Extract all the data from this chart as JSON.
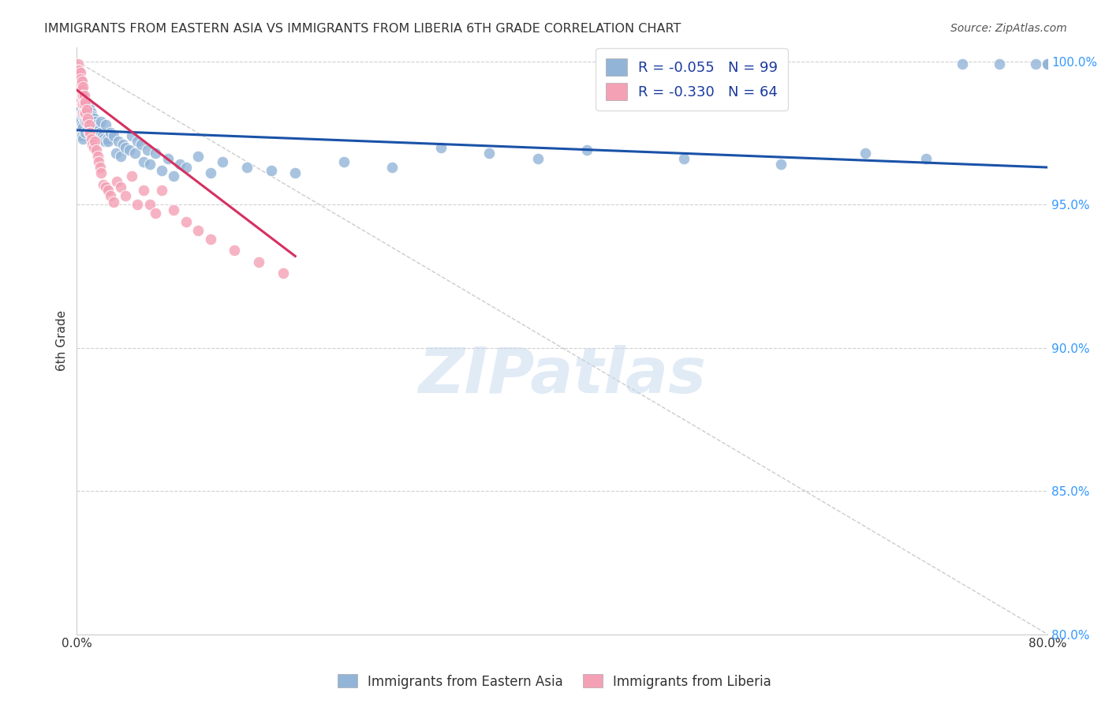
{
  "title": "IMMIGRANTS FROM EASTERN ASIA VS IMMIGRANTS FROM LIBERIA 6TH GRADE CORRELATION CHART",
  "source": "Source: ZipAtlas.com",
  "ylabel": "6th Grade",
  "x_min": 0.0,
  "x_max": 0.8,
  "y_min": 0.8,
  "y_max": 1.005,
  "y_ticks": [
    0.8,
    0.85,
    0.9,
    0.95,
    1.0
  ],
  "y_tick_labels": [
    "80.0%",
    "85.0%",
    "90.0%",
    "95.0%",
    "100.0%"
  ],
  "r_blue": -0.055,
  "n_blue": 99,
  "r_pink": -0.33,
  "n_pink": 64,
  "legend_label_blue": "Immigrants from Eastern Asia",
  "legend_label_pink": "Immigrants from Liberia",
  "blue_color": "#92b4d7",
  "pink_color": "#f4a0b5",
  "trend_blue_color": "#1a52a8",
  "trend_pink_color": "#d63060",
  "blue_trend_x0": 0.0,
  "blue_trend_y0": 0.976,
  "blue_trend_x1": 0.8,
  "blue_trend_y1": 0.963,
  "pink_trend_x0": 0.0,
  "pink_trend_y0": 0.99,
  "pink_trend_x1": 0.18,
  "pink_trend_y1": 0.932,
  "ref_line_x0": 0.0,
  "ref_line_y0": 1.0,
  "ref_line_x1": 0.8,
  "ref_line_y1": 0.8,
  "blue_scatter_x": [
    0.001,
    0.001,
    0.001,
    0.002,
    0.002,
    0.002,
    0.002,
    0.003,
    0.003,
    0.003,
    0.003,
    0.004,
    0.004,
    0.004,
    0.004,
    0.004,
    0.005,
    0.005,
    0.005,
    0.005,
    0.005,
    0.006,
    0.006,
    0.006,
    0.007,
    0.007,
    0.007,
    0.007,
    0.008,
    0.008,
    0.009,
    0.009,
    0.01,
    0.01,
    0.011,
    0.011,
    0.012,
    0.012,
    0.013,
    0.013,
    0.014,
    0.015,
    0.015,
    0.016,
    0.017,
    0.018,
    0.019,
    0.02,
    0.021,
    0.022,
    0.023,
    0.024,
    0.025,
    0.026,
    0.028,
    0.03,
    0.032,
    0.034,
    0.036,
    0.038,
    0.04,
    0.043,
    0.045,
    0.048,
    0.05,
    0.053,
    0.055,
    0.058,
    0.06,
    0.065,
    0.07,
    0.075,
    0.08,
    0.085,
    0.09,
    0.1,
    0.11,
    0.12,
    0.14,
    0.16,
    0.18,
    0.22,
    0.26,
    0.3,
    0.34,
    0.38,
    0.42,
    0.5,
    0.58,
    0.65,
    0.7,
    0.73,
    0.76,
    0.79,
    0.8,
    0.8,
    0.8,
    0.8,
    0.8
  ],
  "blue_scatter_y": [
    0.99,
    0.985,
    0.98,
    0.993,
    0.988,
    0.983,
    0.978,
    0.991,
    0.987,
    0.983,
    0.979,
    0.99,
    0.986,
    0.982,
    0.978,
    0.974,
    0.989,
    0.985,
    0.981,
    0.977,
    0.973,
    0.988,
    0.984,
    0.98,
    0.987,
    0.983,
    0.979,
    0.975,
    0.986,
    0.982,
    0.985,
    0.981,
    0.984,
    0.98,
    0.983,
    0.979,
    0.982,
    0.978,
    0.981,
    0.977,
    0.98,
    0.979,
    0.975,
    0.978,
    0.977,
    0.976,
    0.975,
    0.979,
    0.974,
    0.973,
    0.972,
    0.978,
    0.973,
    0.972,
    0.975,
    0.974,
    0.968,
    0.972,
    0.967,
    0.971,
    0.97,
    0.969,
    0.974,
    0.968,
    0.972,
    0.971,
    0.965,
    0.969,
    0.964,
    0.968,
    0.962,
    0.966,
    0.96,
    0.964,
    0.963,
    0.967,
    0.961,
    0.965,
    0.963,
    0.962,
    0.961,
    0.965,
    0.963,
    0.97,
    0.968,
    0.966,
    0.969,
    0.966,
    0.964,
    0.968,
    0.966,
    0.999,
    0.999,
    0.999,
    0.999,
    0.999,
    0.999,
    0.999,
    0.999
  ],
  "pink_scatter_x": [
    0.001,
    0.001,
    0.001,
    0.001,
    0.002,
    0.002,
    0.002,
    0.002,
    0.002,
    0.003,
    0.003,
    0.003,
    0.003,
    0.003,
    0.003,
    0.004,
    0.004,
    0.004,
    0.004,
    0.005,
    0.005,
    0.005,
    0.005,
    0.006,
    0.006,
    0.006,
    0.007,
    0.007,
    0.008,
    0.008,
    0.009,
    0.01,
    0.01,
    0.011,
    0.012,
    0.013,
    0.014,
    0.015,
    0.016,
    0.017,
    0.018,
    0.019,
    0.02,
    0.022,
    0.024,
    0.026,
    0.028,
    0.03,
    0.033,
    0.036,
    0.04,
    0.045,
    0.05,
    0.055,
    0.06,
    0.065,
    0.07,
    0.08,
    0.09,
    0.1,
    0.11,
    0.13,
    0.15,
    0.17
  ],
  "pink_scatter_y": [
    0.999,
    0.997,
    0.995,
    0.993,
    0.997,
    0.995,
    0.993,
    0.991,
    0.988,
    0.996,
    0.994,
    0.992,
    0.99,
    0.988,
    0.986,
    0.993,
    0.99,
    0.988,
    0.985,
    0.991,
    0.988,
    0.985,
    0.982,
    0.988,
    0.985,
    0.982,
    0.986,
    0.982,
    0.983,
    0.979,
    0.98,
    0.978,
    0.975,
    0.975,
    0.973,
    0.971,
    0.97,
    0.972,
    0.969,
    0.967,
    0.965,
    0.963,
    0.961,
    0.957,
    0.956,
    0.955,
    0.953,
    0.951,
    0.958,
    0.956,
    0.953,
    0.96,
    0.95,
    0.955,
    0.95,
    0.947,
    0.955,
    0.948,
    0.944,
    0.941,
    0.938,
    0.934,
    0.93,
    0.926
  ]
}
